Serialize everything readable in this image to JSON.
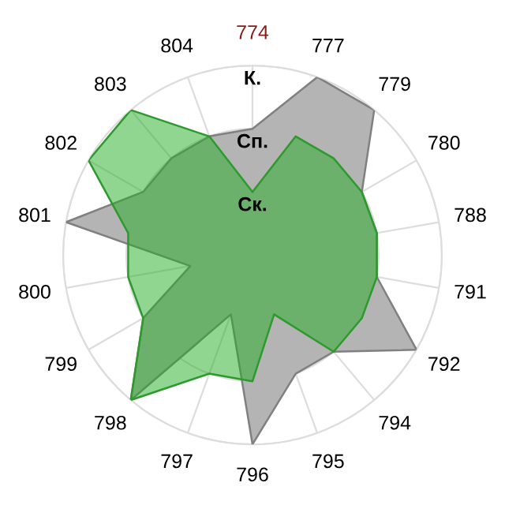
{
  "chart_data": {
    "type": "radar",
    "categories": [
      "774",
      "777",
      "779",
      "780",
      "788",
      "791",
      "792",
      "794",
      "795",
      "796",
      "797",
      "798",
      "799",
      "800",
      "801",
      "802",
      "803",
      "804"
    ],
    "series": [
      {
        "color": "#b4b4b4",
        "values": [
          2,
          3,
          3,
          2,
          2,
          2,
          3,
          2,
          2,
          3,
          1,
          3,
          2,
          1,
          3,
          2,
          2,
          2
        ]
      },
      {
        "color": "#21ad21",
        "values": [
          1,
          2,
          2,
          2,
          2,
          2,
          2,
          2,
          1,
          2,
          2,
          3,
          2,
          2,
          2,
          3,
          3,
          2
        ]
      }
    ],
    "ylim": [
      0,
      3
    ],
    "yticks": [
      {
        "value": 1,
        "label": "Ск."
      },
      {
        "value": 2,
        "label": "Сп."
      },
      {
        "value": 3,
        "label": "К."
      }
    ],
    "grid": true,
    "legend": false
  }
}
